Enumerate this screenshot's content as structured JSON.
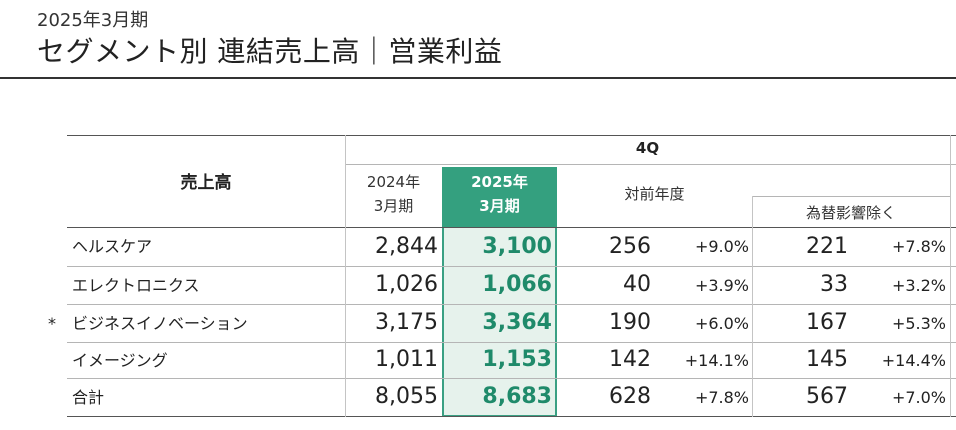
{
  "page": {
    "subtitle": "2025年3月期",
    "title": "セグメント別 連結売上高｜営業利益"
  },
  "table": {
    "row_header": "売上高",
    "period_header": "4Q",
    "col_prev": [
      "2024年",
      "3月期"
    ],
    "col_curr": [
      "2025年",
      "3月期"
    ],
    "col_yoy": "対前年度",
    "col_fx": "為替影響除く",
    "rows": [
      {
        "marker": "",
        "label": "ヘルスケア",
        "prev": "2,844",
        "curr": "3,100",
        "yoy": "256",
        "yoy_pct": "+9.0%",
        "fx": "221",
        "fx_pct": "+7.8%"
      },
      {
        "marker": "",
        "label": "エレクトロニクス",
        "prev": "1,026",
        "curr": "1,066",
        "yoy": "40",
        "yoy_pct": "+3.9%",
        "fx": "33",
        "fx_pct": "+3.2%"
      },
      {
        "marker": "*",
        "label": "ビジネスイノベーション",
        "prev": "3,175",
        "curr": "3,364",
        "yoy": "190",
        "yoy_pct": "+6.0%",
        "fx": "167",
        "fx_pct": "+5.3%"
      },
      {
        "marker": "",
        "label": "イメージング",
        "prev": "1,011",
        "curr": "1,153",
        "yoy": "142",
        "yoy_pct": "+14.1%",
        "fx": "145",
        "fx_pct": "+14.4%"
      },
      {
        "marker": "",
        "label": "合計",
        "prev": "8,055",
        "curr": "8,683",
        "yoy": "628",
        "yoy_pct": "+7.8%",
        "fx": "567",
        "fx_pct": "+7.0%"
      }
    ]
  },
  "colors": {
    "accent": "#34a07f",
    "highlight_bg": "#e6f2ec",
    "highlight_text": "#1f8a6a"
  }
}
